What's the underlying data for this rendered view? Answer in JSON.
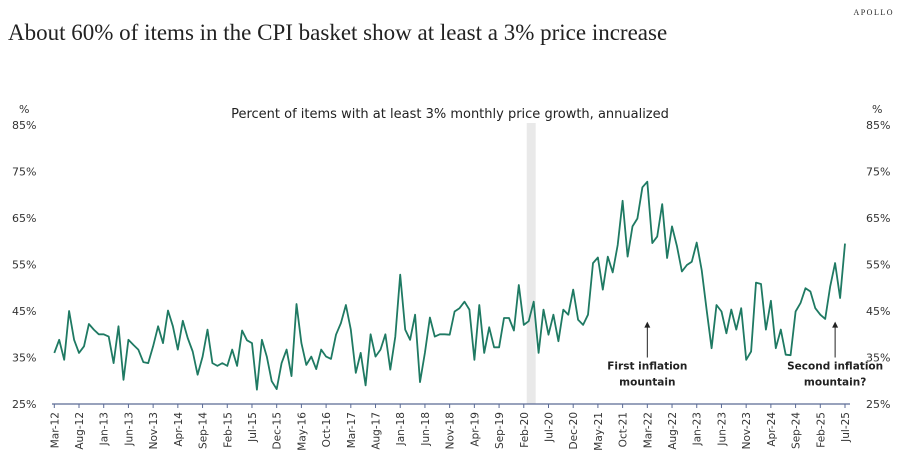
{
  "brand": "APOLLO",
  "title": "About 60% of items in the CPI basket show at least a 3% price increase",
  "chart_data": {
    "type": "line",
    "title": "Percent of items with at least 3% monthly price growth, annualized",
    "ylabel": "%",
    "ylim": [
      25,
      85
    ],
    "y_ticks": [
      "25%",
      "35%",
      "45%",
      "55%",
      "65%",
      "75%",
      "85%"
    ],
    "y_axis_sides": [
      "left",
      "right"
    ],
    "grid": false,
    "line_color": "#1f7a63",
    "x": [
      "Mar-12",
      "Apr-12",
      "May-12",
      "Jun-12",
      "Jul-12",
      "Aug-12",
      "Sep-12",
      "Oct-12",
      "Nov-12",
      "Dec-12",
      "Jan-13",
      "Feb-13",
      "Mar-13",
      "Apr-13",
      "May-13",
      "Jun-13",
      "Jul-13",
      "Aug-13",
      "Sep-13",
      "Oct-13",
      "Nov-13",
      "Dec-13",
      "Jan-14",
      "Feb-14",
      "Mar-14",
      "Apr-14",
      "May-14",
      "Jun-14",
      "Jul-14",
      "Aug-14",
      "Sep-14",
      "Oct-14",
      "Nov-14",
      "Dec-14",
      "Jan-15",
      "Feb-15",
      "Mar-15",
      "Apr-15",
      "May-15",
      "Jun-15",
      "Jul-15",
      "Aug-15",
      "Sep-15",
      "Oct-15",
      "Nov-15",
      "Dec-15",
      "Jan-16",
      "Feb-16",
      "Mar-16",
      "Apr-16",
      "May-16",
      "Jun-16",
      "Jul-16",
      "Aug-16",
      "Sep-16",
      "Oct-16",
      "Nov-16",
      "Dec-16",
      "Jan-17",
      "Feb-17",
      "Mar-17",
      "Apr-17",
      "May-17",
      "Jun-17",
      "Jul-17",
      "Aug-17",
      "Sep-17",
      "Oct-17",
      "Nov-17",
      "Dec-17",
      "Jan-18",
      "Feb-18",
      "Mar-18",
      "Apr-18",
      "May-18",
      "Jun-18",
      "Jul-18",
      "Aug-18",
      "Sep-18",
      "Oct-18",
      "Nov-18",
      "Dec-18",
      "Jan-19",
      "Feb-19",
      "Mar-19",
      "Apr-19",
      "May-19",
      "Jun-19",
      "Jul-19",
      "Aug-19",
      "Sep-19",
      "Oct-19",
      "Nov-19",
      "Dec-19",
      "Jan-20",
      "Feb-20",
      "Mar-20",
      "Apr-20",
      "May-20",
      "Jun-20",
      "Jul-20",
      "Aug-20",
      "Sep-20",
      "Oct-20",
      "Nov-20",
      "Dec-20",
      "Jan-21",
      "Feb-21",
      "Mar-21",
      "Apr-21",
      "May-21",
      "Jun-21",
      "Jul-21",
      "Aug-21",
      "Sep-21",
      "Oct-21",
      "Nov-21",
      "Dec-21",
      "Jan-22",
      "Feb-22",
      "Mar-22",
      "Apr-22",
      "May-22",
      "Jun-22",
      "Jul-22",
      "Aug-22",
      "Sep-22",
      "Oct-22",
      "Nov-22",
      "Dec-22",
      "Jan-23",
      "Feb-23",
      "Mar-23",
      "Apr-23",
      "May-23",
      "Jun-23",
      "Jul-23",
      "Aug-23",
      "Sep-23",
      "Oct-23",
      "Nov-23",
      "Dec-23",
      "Jan-24",
      "Feb-24",
      "Mar-24",
      "Apr-24",
      "May-24",
      "Jun-24",
      "Jul-24",
      "Aug-24",
      "Sep-24",
      "Oct-24",
      "Nov-24",
      "Dec-24",
      "Jan-25",
      "Feb-25",
      "Mar-25",
      "Apr-25",
      "May-25",
      "Jun-25",
      "Jul-25"
    ],
    "values": [
      36,
      38.8,
      34.5,
      45,
      38.8,
      36,
      37.4,
      42.2,
      41,
      40,
      40,
      39.5,
      33.8,
      41.7,
      30.2,
      38.8,
      37.7,
      36.7,
      34,
      33.8,
      37.4,
      41.7,
      38.1,
      45.1,
      41.7,
      36.7,
      42.9,
      39.2,
      36.3,
      31.3,
      35.2,
      41,
      33.8,
      33.2,
      33.8,
      33.2,
      36.7,
      33.2,
      40.8,
      38.7,
      38.1,
      28.1,
      38.8,
      35.2,
      29.9,
      28.2,
      33.8,
      36.7,
      31,
      46.5,
      38.1,
      33.4,
      35.2,
      32.5,
      36.7,
      35.2,
      34.7,
      39.9,
      42.4,
      46.3,
      41,
      31.7,
      36,
      29,
      40,
      35.2,
      36.7,
      40,
      32.4,
      39.5,
      52.8,
      41,
      38.8,
      44.2,
      29.7,
      36,
      43.6,
      39.5,
      40,
      40,
      39.9,
      44.9,
      45.6,
      47,
      45.3,
      34.5,
      46.3,
      36,
      41.5,
      37.2,
      37.2,
      43.5,
      43.5,
      40.8,
      50.6,
      42,
      42.8,
      47,
      36,
      45.3,
      39.9,
      44.2,
      38.5,
      45.3,
      44.2,
      49.6,
      43.1,
      42,
      44.2,
      55.3,
      56.5,
      49.6,
      56.7,
      53.3,
      59.2,
      68.7,
      56.7,
      63.2,
      64.9,
      71.6,
      72.8,
      59.6,
      61,
      68,
      56.4,
      63.2,
      58.9,
      53.5,
      54.9,
      55.6,
      59.7,
      53.8,
      45.3,
      37,
      46.3,
      44.9,
      40.2,
      45.3,
      41,
      45.6,
      34.5,
      36.3,
      51.1,
      50.8,
      41,
      47.2,
      37,
      41,
      35.6,
      35.5,
      44.9,
      46.7,
      49.9,
      49.2,
      45.6,
      44.2,
      43.3,
      50.3,
      55.3,
      47.8,
      59.5
    ],
    "x_tick_every": 5,
    "shaded_period": [
      "Mar-20",
      "Apr-20"
    ],
    "annotations": [
      {
        "text_line1": "First inflation",
        "text_line2": "mountain",
        "x": "Mar-22",
        "arrow_from": 35,
        "arrow_to": 42.5
      },
      {
        "text_line1": "Second inflation",
        "text_line2": "mountain?",
        "x": "May-25",
        "arrow_from": 35,
        "arrow_to": 42.5
      }
    ]
  }
}
